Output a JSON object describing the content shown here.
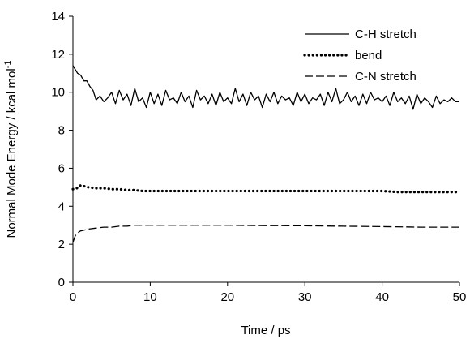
{
  "chart_data": {
    "type": "line",
    "xlabel": "Time / ps",
    "ylabel": "Normal Mode Energy / kcal mol",
    "ylabel_sup": "-1",
    "xlim": [
      0,
      50
    ],
    "ylim": [
      0,
      14
    ],
    "xticks": [
      0,
      10,
      20,
      30,
      40,
      50
    ],
    "yticks": [
      0,
      2,
      4,
      6,
      8,
      10,
      12,
      14
    ],
    "grid": false,
    "legend_position": "top-right",
    "series": [
      {
        "name": "C-H stretch",
        "style": "solid",
        "x": [
          0,
          0.3,
          0.6,
          1.0,
          1.4,
          1.8,
          2.2,
          2.6,
          3.0,
          3.5,
          4.0,
          4.5,
          5.0,
          5.5,
          6.0,
          6.5,
          7.0,
          7.5,
          8.0,
          8.5,
          9.0,
          9.5,
          10.0,
          10.5,
          11.0,
          11.5,
          12.0,
          12.5,
          13.0,
          13.5,
          14.0,
          14.5,
          15.0,
          15.5,
          16.0,
          16.5,
          17.0,
          17.5,
          18.0,
          18.5,
          19.0,
          19.5,
          20.0,
          20.5,
          21.0,
          21.5,
          22.0,
          22.5,
          23.0,
          23.5,
          24.0,
          24.5,
          25.0,
          25.5,
          26.0,
          26.5,
          27.0,
          27.5,
          28.0,
          28.5,
          29.0,
          29.5,
          30.0,
          30.5,
          31.0,
          31.5,
          32.0,
          32.5,
          33.0,
          33.5,
          34.0,
          34.5,
          35.0,
          35.5,
          36.0,
          36.5,
          37.0,
          37.5,
          38.0,
          38.5,
          39.0,
          39.5,
          40.0,
          40.5,
          41.0,
          41.5,
          42.0,
          42.5,
          43.0,
          43.5,
          44.0,
          44.5,
          45.0,
          45.5,
          46.0,
          46.5,
          47.0,
          47.5,
          48.0,
          48.5,
          49.0,
          49.5,
          50.0
        ],
        "values": [
          11.4,
          11.2,
          11.0,
          10.9,
          10.6,
          10.6,
          10.3,
          10.1,
          9.6,
          9.8,
          9.5,
          9.7,
          10.0,
          9.4,
          10.1,
          9.6,
          9.9,
          9.3,
          10.2,
          9.5,
          9.7,
          9.2,
          10.0,
          9.4,
          9.9,
          9.3,
          10.1,
          9.6,
          9.7,
          9.4,
          10.0,
          9.5,
          9.8,
          9.2,
          10.1,
          9.6,
          9.8,
          9.4,
          9.9,
          9.3,
          10.0,
          9.5,
          9.7,
          9.4,
          10.2,
          9.5,
          9.9,
          9.3,
          10.0,
          9.6,
          9.8,
          9.2,
          9.9,
          9.5,
          10.0,
          9.4,
          9.8,
          9.6,
          9.7,
          9.3,
          10.0,
          9.5,
          9.9,
          9.4,
          9.7,
          9.6,
          9.9,
          9.3,
          10.0,
          9.5,
          10.2,
          9.4,
          9.6,
          10.0,
          9.5,
          9.8,
          9.3,
          9.9,
          9.4,
          10.0,
          9.6,
          9.7,
          9.5,
          9.8,
          9.3,
          10.0,
          9.5,
          9.7,
          9.4,
          9.8,
          9.1,
          9.9,
          9.4,
          9.7,
          9.5,
          9.2,
          9.8,
          9.4,
          9.6,
          9.5,
          9.7,
          9.5,
          9.5
        ]
      },
      {
        "name": "bend",
        "style": "dotted",
        "x": [
          0,
          0.5,
          1.0,
          1.5,
          2,
          3,
          4,
          5,
          6,
          7,
          8,
          9,
          10,
          12,
          14,
          16,
          18,
          20,
          22,
          24,
          26,
          28,
          30,
          32,
          34,
          36,
          38,
          40,
          42,
          44,
          46,
          48,
          50
        ],
        "values": [
          4.9,
          4.95,
          5.1,
          5.05,
          5.0,
          4.95,
          4.95,
          4.9,
          4.9,
          4.85,
          4.85,
          4.8,
          4.8,
          4.8,
          4.8,
          4.8,
          4.8,
          4.8,
          4.8,
          4.8,
          4.8,
          4.8,
          4.8,
          4.8,
          4.8,
          4.8,
          4.8,
          4.8,
          4.75,
          4.75,
          4.75,
          4.75,
          4.75
        ]
      },
      {
        "name": "C-N stretch",
        "style": "dashed",
        "x": [
          0,
          0.3,
          0.6,
          1.0,
          1.5,
          2,
          3,
          4,
          5,
          6,
          7,
          8,
          9,
          10,
          12,
          15,
          20,
          25,
          30,
          35,
          40,
          45,
          50
        ],
        "values": [
          2.1,
          2.45,
          2.6,
          2.7,
          2.75,
          2.8,
          2.85,
          2.9,
          2.9,
          2.95,
          2.95,
          3.0,
          3.0,
          3.0,
          3.0,
          3.0,
          3.0,
          2.98,
          2.97,
          2.95,
          2.93,
          2.9,
          2.9
        ]
      }
    ]
  }
}
